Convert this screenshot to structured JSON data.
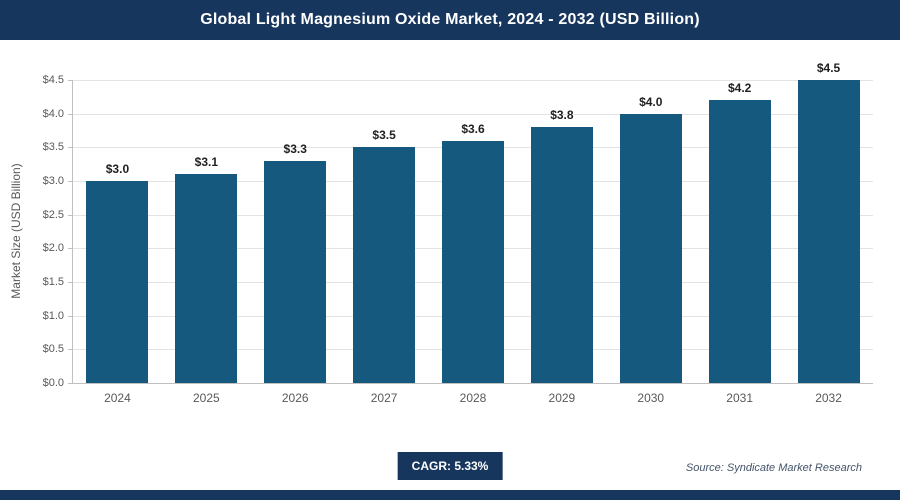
{
  "header": {
    "title": "Global Light Magnesium Oxide Market, 2024 - 2032 (USD Billion)"
  },
  "chart_data": {
    "type": "bar",
    "title": "Global Light Magnesium Oxide Market, 2024 - 2032 (USD Billion)",
    "categories": [
      "2024",
      "2025",
      "2026",
      "2027",
      "2028",
      "2029",
      "2030",
      "2031",
      "2032"
    ],
    "values": [
      3.0,
      3.1,
      3.3,
      3.5,
      3.6,
      3.8,
      4.0,
      4.2,
      4.5
    ],
    "bar_labels": [
      "$3.0",
      "$3.1",
      "$3.3",
      "$3.5",
      "$3.6",
      "$3.8",
      "$4.0",
      "$4.2",
      "$4.5"
    ],
    "xlabel": "",
    "ylabel": "Market Size (USD Billion)",
    "ylim": [
      0,
      4.5
    ],
    "yticks": [
      {
        "value": 0.0,
        "label": "$0.0"
      },
      {
        "value": 0.5,
        "label": "$0.5"
      },
      {
        "value": 1.0,
        "label": "$1.0"
      },
      {
        "value": 1.5,
        "label": "$1.5"
      },
      {
        "value": 2.0,
        "label": "$2.0"
      },
      {
        "value": 2.5,
        "label": "$2.5"
      },
      {
        "value": 3.0,
        "label": "$3.0"
      },
      {
        "value": 3.5,
        "label": "$3.5"
      },
      {
        "value": 4.0,
        "label": "$4.0"
      },
      {
        "value": 4.5,
        "label": "$4.5"
      }
    ],
    "grid": true,
    "legend": false
  },
  "footer": {
    "cagr_label": "CAGR: 5.33%",
    "source": "Source: Syndicate Market Research"
  },
  "colors": {
    "header_bg": "#17365d",
    "bar": "#16597f",
    "cagr_bg": "#17365d",
    "bottom_strip": "#17365d"
  }
}
